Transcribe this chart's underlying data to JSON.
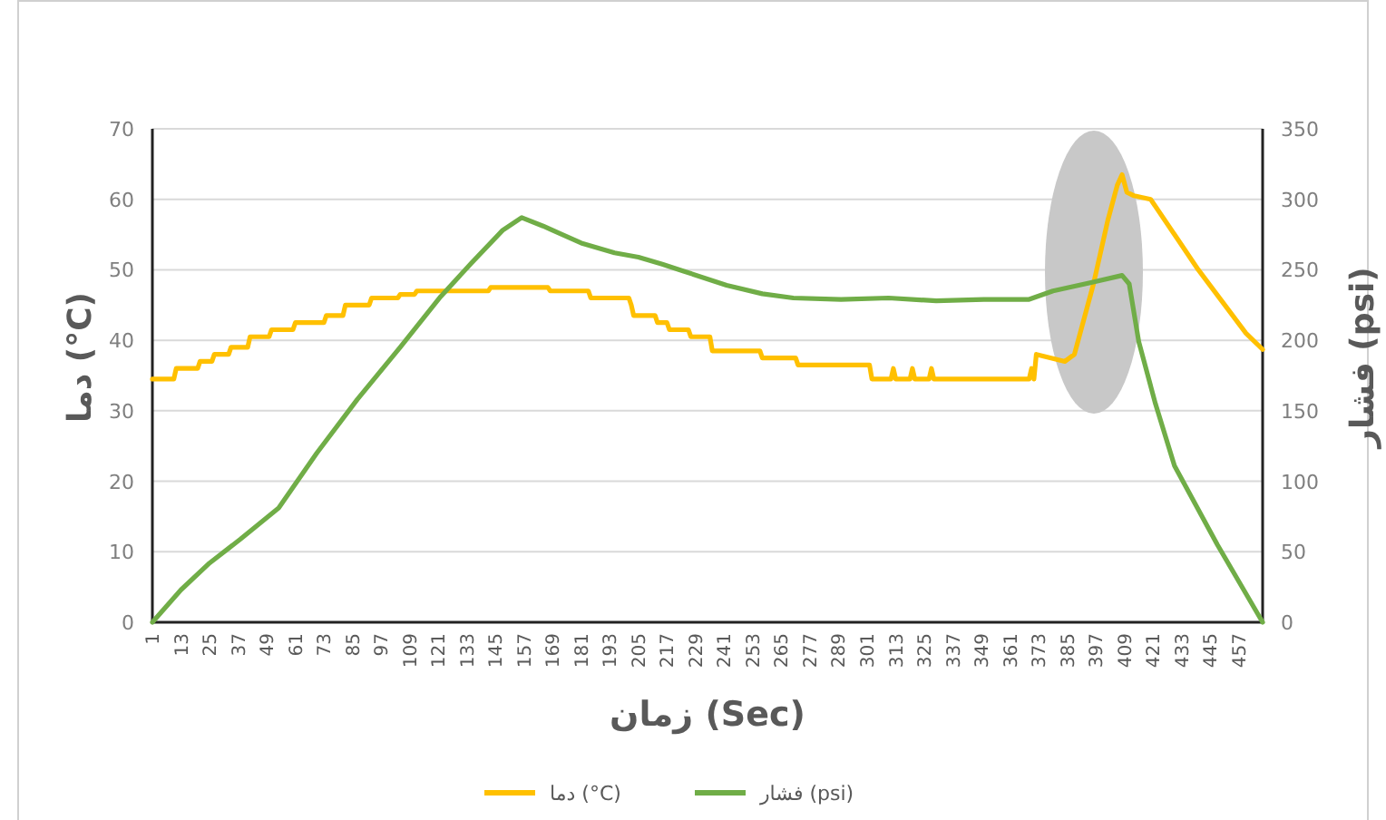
{
  "chart_data": {
    "type": "line",
    "xlabel": "زمان (Sec)",
    "ylabel": "دما (°C)",
    "y2label": "فشار (psi)",
    "xlim": [
      1,
      467
    ],
    "xticks": [
      1,
      13,
      25,
      37,
      49,
      61,
      73,
      85,
      97,
      109,
      121,
      133,
      145,
      157,
      169,
      181,
      193,
      205,
      217,
      229,
      241,
      253,
      265,
      277,
      289,
      301,
      313,
      325,
      337,
      349,
      361,
      373,
      385,
      397,
      409,
      421,
      433,
      445,
      457
    ],
    "ylim": [
      0,
      70
    ],
    "yticks": [
      0,
      10,
      20,
      30,
      40,
      50,
      60,
      70
    ],
    "y2lim": [
      0,
      350
    ],
    "y2ticks": [
      0,
      50,
      100,
      150,
      200,
      250,
      300,
      350
    ],
    "grid": "y",
    "legend": "bottom",
    "series": [
      {
        "name": "دما (°C)",
        "color": "#ffc000",
        "x": [
          1,
          10,
          11,
          20,
          21,
          26,
          27,
          33,
          34,
          41,
          42,
          50,
          51,
          60,
          61,
          73,
          74,
          81,
          82,
          92,
          93,
          104,
          105,
          111,
          112,
          142,
          143,
          167,
          168,
          184,
          185,
          201,
          202,
          203,
          212,
          213,
          217,
          218,
          226,
          227,
          235,
          236,
          256,
          257,
          271,
          272,
          302,
          303,
          311,
          312,
          313,
          319,
          320,
          321,
          327,
          328,
          329,
          369,
          370,
          371,
          372,
          384,
          388,
          396,
          402,
          406,
          408,
          410,
          413,
          420,
          430,
          440,
          450,
          460,
          467
        ],
        "values": [
          34.5,
          34.5,
          36,
          36,
          37,
          37,
          38,
          38,
          39,
          39,
          40.5,
          40.5,
          41.5,
          41.5,
          42.5,
          42.5,
          43.5,
          43.5,
          45,
          45,
          46,
          46,
          46.5,
          46.5,
          47,
          47,
          47.5,
          47.5,
          47,
          47,
          46,
          46,
          45,
          43.5,
          43.5,
          42.5,
          42.5,
          41.5,
          41.5,
          40.5,
          40.5,
          38.5,
          38.5,
          37.5,
          37.5,
          36.5,
          36.5,
          34.5,
          34.5,
          36,
          34.5,
          34.5,
          36,
          34.5,
          34.5,
          36,
          34.5,
          34.5,
          36,
          34.5,
          38,
          37,
          38,
          48,
          57,
          62,
          63.5,
          61,
          60.5,
          60,
          55,
          50,
          45.5,
          41,
          38.7
        ]
      },
      {
        "name": "فشار (psi)",
        "color": "#70ad47",
        "axis": "y2",
        "x": [
          1,
          13,
          25,
          38,
          54,
          70,
          87,
          105,
          122,
          135,
          148,
          156,
          165,
          181,
          195,
          205,
          215,
          224,
          242,
          257,
          270,
          290,
          310,
          330,
          350,
          369,
          379,
          395,
          408,
          411,
          415,
          422,
          430,
          448,
          467
        ],
        "values": [
          0,
          23,
          42,
          59,
          81,
          120,
          158,
          195,
          231,
          255,
          278,
          287,
          281,
          269,
          262,
          259,
          254,
          249,
          239,
          233,
          230,
          229,
          230,
          228,
          229,
          229,
          235,
          241,
          246,
          240,
          199,
          155,
          111,
          55,
          0
        ]
      }
    ]
  }
}
